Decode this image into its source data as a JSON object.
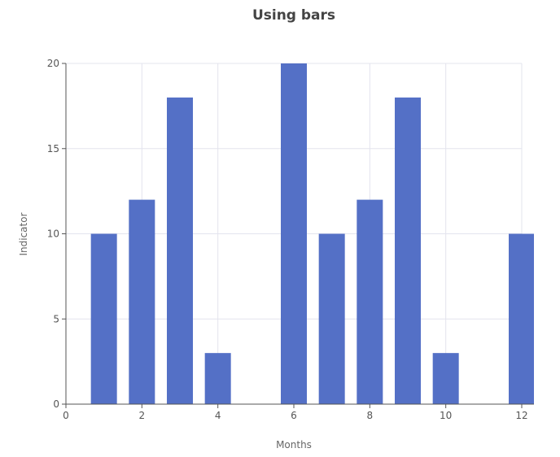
{
  "chart_data": {
    "type": "bar",
    "title": "Using bars",
    "xlabel": "Months",
    "ylabel": "Indicator",
    "x": [
      1,
      2,
      3,
      4,
      6,
      7,
      8,
      9,
      10,
      12
    ],
    "values": [
      10,
      12,
      18,
      3,
      20,
      10,
      12,
      18,
      3,
      10
    ],
    "xlim": [
      0,
      12
    ],
    "ylim": [
      0,
      20
    ],
    "x_ticks": [
      0,
      2,
      4,
      6,
      8,
      10,
      12
    ],
    "y_ticks": [
      0,
      5,
      10,
      15,
      20
    ],
    "grid": true,
    "bar_color": "#5470c6"
  }
}
